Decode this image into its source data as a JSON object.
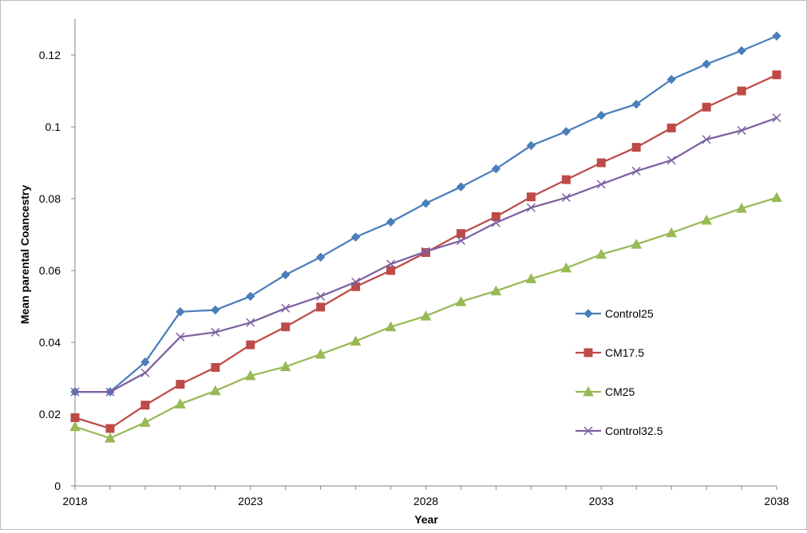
{
  "chart_data": {
    "type": "line",
    "title": "",
    "xlabel": "Year",
    "ylabel": "Mean parental Coancestry",
    "xlim": [
      2018,
      2038
    ],
    "ylim": [
      0,
      0.13
    ],
    "x_ticks": [
      2018,
      2023,
      2028,
      2033,
      2038
    ],
    "y_ticks": [
      0,
      0.02,
      0.04,
      0.06,
      0.08,
      0.1,
      0.12
    ],
    "y_tick_labels": [
      "0",
      "0.02",
      "0.04",
      "0.06",
      "0.08",
      "0.1",
      "0.12"
    ],
    "grid": false,
    "legend_position": "right",
    "x": [
      2018,
      2019,
      2020,
      2021,
      2022,
      2023,
      2024,
      2025,
      2026,
      2027,
      2028,
      2029,
      2030,
      2031,
      2032,
      2033,
      2034,
      2035,
      2036,
      2037,
      2038
    ],
    "series": [
      {
        "name": "Control25",
        "color": "#4a7ebb",
        "marker": "diamond",
        "values": [
          0.0262,
          0.0262,
          0.0345,
          0.0485,
          0.049,
          0.0528,
          0.0588,
          0.0637,
          0.0693,
          0.0735,
          0.0787,
          0.0833,
          0.0883,
          0.0948,
          0.0987,
          0.1032,
          0.1063,
          0.1132,
          0.1175,
          0.1212,
          0.1253
        ]
      },
      {
        "name": "CM17.5",
        "color": "#be4b48",
        "marker": "square",
        "values": [
          0.019,
          0.016,
          0.0225,
          0.0283,
          0.033,
          0.0393,
          0.0443,
          0.0498,
          0.0555,
          0.06,
          0.065,
          0.0703,
          0.075,
          0.0805,
          0.0853,
          0.09,
          0.0943,
          0.0997,
          0.1055,
          0.11,
          0.1145
        ]
      },
      {
        "name": "CM25",
        "color": "#98b954",
        "marker": "triangle",
        "values": [
          0.0165,
          0.0133,
          0.0177,
          0.0228,
          0.0265,
          0.0307,
          0.0332,
          0.0367,
          0.0403,
          0.0443,
          0.0473,
          0.0513,
          0.0543,
          0.0577,
          0.0607,
          0.0645,
          0.0673,
          0.0705,
          0.074,
          0.0773,
          0.0803
        ]
      },
      {
        "name": "Control32.5",
        "color": "#7d60a0",
        "marker": "x",
        "values": [
          0.0262,
          0.0262,
          0.0315,
          0.0415,
          0.0428,
          0.0455,
          0.0495,
          0.0528,
          0.0568,
          0.0618,
          0.0653,
          0.0683,
          0.0733,
          0.0775,
          0.0803,
          0.084,
          0.0877,
          0.0907,
          0.0965,
          0.099,
          0.1025
        ]
      }
    ]
  }
}
